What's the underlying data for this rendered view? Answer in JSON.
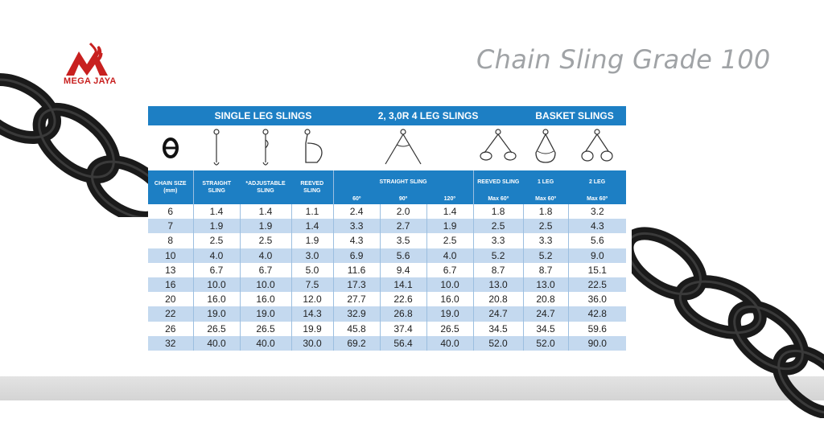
{
  "brand": {
    "name": "MEGA JAYA",
    "color": "#c8201f"
  },
  "title": "Chain Sling Grade 100",
  "table": {
    "header_color": "#1d7fc4",
    "stripe_color": "#c4d9ef",
    "group_headers": {
      "single_leg": "SINGLE LEG SLINGS",
      "multi_leg": "2, 3,0R 4 LEG SLINGS",
      "basket": "BASKET SLINGS"
    },
    "col_headers": {
      "chain_size": "CHAIN SIZE",
      "chain_size_unit": "(mm)",
      "straight": "STRAIGHT SLING",
      "adjustable": "*ADJUSTABLE SLING",
      "reeved": "REEVED SLING",
      "straight_sling": "STRAIGHT SLING",
      "reeved_sling": "REEVED SLING",
      "one_leg": "1 LEG",
      "two_leg": "2 LEG"
    },
    "sub_headers": {
      "a60": "60º",
      "a90": "90º",
      "a120": "120º",
      "max60_1": "Max 60º",
      "max60_2": "Max 60º",
      "max60_3": "Max 60º"
    },
    "rows": [
      [
        "6",
        "1.4",
        "1.4",
        "1.1",
        "2.4",
        "2.0",
        "1.4",
        "1.8",
        "1.8",
        "3.2"
      ],
      [
        "7",
        "1.9",
        "1.9",
        "1.4",
        "3.3",
        "2.7",
        "1.9",
        "2.5",
        "2.5",
        "4.3"
      ],
      [
        "8",
        "2.5",
        "2.5",
        "1.9",
        "4.3",
        "3.5",
        "2.5",
        "3.3",
        "3.3",
        "5.6"
      ],
      [
        "10",
        "4.0",
        "4.0",
        "3.0",
        "6.9",
        "5.6",
        "4.0",
        "5.2",
        "5.2",
        "9.0"
      ],
      [
        "13",
        "6.7",
        "6.7",
        "5.0",
        "11.6",
        "9.4",
        "6.7",
        "8.7",
        "8.7",
        "15.1"
      ],
      [
        "16",
        "10.0",
        "10.0",
        "7.5",
        "17.3",
        "14.1",
        "10.0",
        "13.0",
        "13.0",
        "22.5"
      ],
      [
        "20",
        "16.0",
        "16.0",
        "12.0",
        "27.7",
        "22.6",
        "16.0",
        "20.8",
        "20.8",
        "36.0"
      ],
      [
        "22",
        "19.0",
        "19.0",
        "14.3",
        "32.9",
        "26.8",
        "19.0",
        "24.7",
        "24.7",
        "42.8"
      ],
      [
        "26",
        "26.5",
        "26.5",
        "19.9",
        "45.8",
        "37.4",
        "26.5",
        "34.5",
        "34.5",
        "59.6"
      ],
      [
        "32",
        "40.0",
        "40.0",
        "30.0",
        "69.2",
        "56.4",
        "40.0",
        "52.0",
        "52.0",
        "90.0"
      ]
    ]
  },
  "icons": [
    "chain-link-icon",
    "straight-sling-icon",
    "adjustable-sling-icon",
    "reeved-sling-icon",
    "two-leg-sling-icon",
    "reeved-two-leg-icon",
    "basket-one-leg-icon",
    "basket-two-leg-icon"
  ]
}
